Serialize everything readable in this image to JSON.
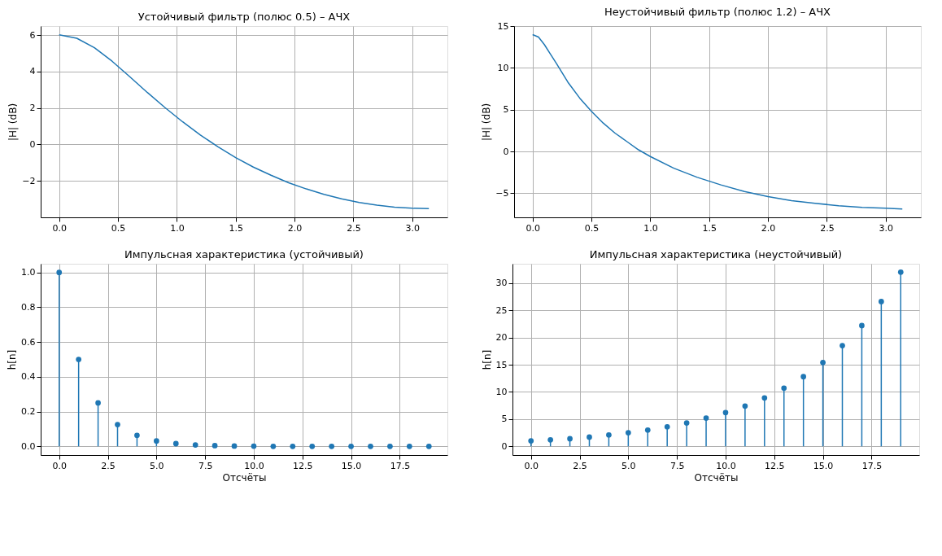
{
  "chart_data": [
    {
      "type": "line",
      "title": "Устойчивый фильтр (полюс 0.5) – АЧХ",
      "ylabel": "|H| (dB)",
      "grid": true,
      "x": [
        0,
        0.15,
        0.3,
        0.45,
        0.6,
        0.75,
        0.9,
        1.05,
        1.2,
        1.35,
        1.5,
        1.65,
        1.8,
        1.95,
        2.1,
        2.25,
        2.4,
        2.55,
        2.7,
        2.85,
        3.0,
        3.1416
      ],
      "series": [
        {
          "color": "#1f77b4",
          "values": [
            6.02,
            5.83,
            5.31,
            4.57,
            3.72,
            2.85,
            2.02,
            1.24,
            0.52,
            -0.13,
            -0.72,
            -1.24,
            -1.69,
            -2.1,
            -2.44,
            -2.74,
            -2.98,
            -3.18,
            -3.33,
            -3.44,
            -3.5,
            -3.52
          ]
        }
      ],
      "xlim": [
        -0.157,
        3.299
      ],
      "ylim": [
        -4.0,
        6.5
      ],
      "xticks": [
        {
          "value": 0,
          "label": "0.0"
        },
        0.5,
        {
          "value": 1,
          "label": "1.0"
        },
        1.5,
        {
          "value": 2,
          "label": "2.0"
        },
        2.5,
        {
          "value": 3,
          "label": "3.0"
        }
      ],
      "yticks": [
        {
          "value": -2,
          "label": "−2"
        },
        0,
        2,
        4,
        6
      ]
    },
    {
      "type": "line",
      "title": "Неустойчивый фильтр (полюс 1.2) – АЧХ",
      "ylabel": "|H| (dB)",
      "grid": true,
      "x": [
        0,
        0.05,
        0.1,
        0.15,
        0.2,
        0.3,
        0.4,
        0.5,
        0.6,
        0.7,
        0.8,
        0.9,
        1.0,
        1.2,
        1.4,
        1.6,
        1.8,
        2.0,
        2.2,
        2.4,
        2.6,
        2.8,
        3.0,
        3.1416
      ],
      "series": [
        {
          "color": "#1f77b4",
          "values": [
            14.0,
            13.7,
            12.8,
            11.7,
            10.6,
            8.3,
            6.4,
            4.8,
            3.4,
            2.2,
            1.2,
            0.2,
            -0.6,
            -2.0,
            -3.1,
            -4.0,
            -4.8,
            -5.4,
            -5.9,
            -6.2,
            -6.5,
            -6.7,
            -6.8,
            -6.9
          ]
        }
      ],
      "xlim": [
        -0.157,
        3.299
      ],
      "ylim": [
        -7.89,
        15.02
      ],
      "xticks": [
        {
          "value": 0,
          "label": "0.0"
        },
        0.5,
        {
          "value": 1,
          "label": "1.0"
        },
        1.5,
        {
          "value": 2,
          "label": "2.0"
        },
        2.5,
        {
          "value": 3,
          "label": "3.0"
        }
      ],
      "yticks": [
        {
          "value": -5,
          "label": "−5"
        },
        0,
        5,
        10,
        15
      ]
    },
    {
      "type": "lollipop",
      "title": "Импульсная характеристика (устойчивый)",
      "xlabel": "Отсчёты",
      "ylabel": "h[n]",
      "grid": true,
      "marker": "circle",
      "x": [
        0,
        1,
        2,
        3,
        4,
        5,
        6,
        7,
        8,
        9,
        10,
        11,
        12,
        13,
        14,
        15,
        16,
        17,
        18,
        19
      ],
      "series": [
        {
          "color": "#1f77b4",
          "values": [
            1,
            0.5,
            0.25,
            0.125,
            0.063,
            0.031,
            0.016,
            0.008,
            0.004,
            0.002,
            0.001,
            0,
            0,
            0,
            0,
            0,
            0,
            0,
            0,
            0
          ]
        }
      ],
      "xlim": [
        -0.95,
        19.95
      ],
      "ylim": [
        -0.05,
        1.05
      ],
      "xticks": [
        {
          "value": 0,
          "label": "0.0"
        },
        2.5,
        {
          "value": 5,
          "label": "5.0"
        },
        7.5,
        {
          "value": 10,
          "label": "10.0"
        },
        12.5,
        {
          "value": 15,
          "label": "15.0"
        },
        17.5
      ],
      "yticks": [
        {
          "value": 0,
          "label": "0.0"
        },
        0.2,
        0.4,
        0.6,
        0.8,
        {
          "value": 1,
          "label": "1.0"
        }
      ]
    },
    {
      "type": "lollipop",
      "title": "Импульсная характеристика (неустойчивый)",
      "xlabel": "Отсчёты",
      "ylabel": "h[n]",
      "grid": true,
      "marker": "circle",
      "x": [
        0,
        1,
        2,
        3,
        4,
        5,
        6,
        7,
        8,
        9,
        10,
        11,
        12,
        13,
        14,
        15,
        16,
        17,
        18,
        19
      ],
      "series": [
        {
          "color": "#1f77b4",
          "values": [
            1,
            1.2,
            1.4,
            1.7,
            2.1,
            2.5,
            3.0,
            3.6,
            4.3,
            5.2,
            6.2,
            7.4,
            8.9,
            10.7,
            12.8,
            15.4,
            18.5,
            22.2,
            26.6,
            32.0
          ]
        }
      ],
      "xlim": [
        -0.95,
        19.95
      ],
      "ylim": [
        -1.6,
        33.55
      ],
      "xticks": [
        {
          "value": 0,
          "label": "0.0"
        },
        2.5,
        {
          "value": 5,
          "label": "5.0"
        },
        7.5,
        {
          "value": 10,
          "label": "10.0"
        },
        12.5,
        {
          "value": 15,
          "label": "15.0"
        },
        17.5
      ],
      "yticks": [
        0,
        5,
        10,
        15,
        20,
        25,
        30
      ]
    }
  ]
}
